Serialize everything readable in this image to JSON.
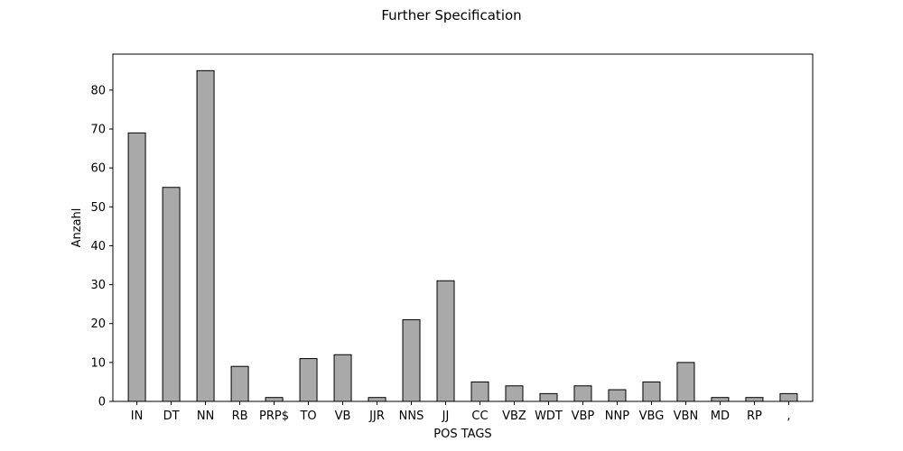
{
  "chart_data": {
    "type": "bar",
    "title": "Further Specification",
    "xlabel": "POS TAGS",
    "ylabel": "Anzahl",
    "categories": [
      "IN",
      "DT",
      "NN",
      "RB",
      "PRP$",
      "TO",
      "VB",
      "JJR",
      "NNS",
      "JJ",
      "CC",
      "VBZ",
      "WDT",
      "VBP",
      "NNP",
      "VBG",
      "VBN",
      "MD",
      "RP",
      ","
    ],
    "values": [
      69,
      55,
      85,
      9,
      1,
      11,
      12,
      1,
      21,
      31,
      5,
      4,
      2,
      4,
      3,
      5,
      10,
      1,
      1,
      2
    ],
    "ylim": [
      0,
      89.25
    ],
    "yticks": [
      0,
      10,
      20,
      30,
      40,
      50,
      60,
      70,
      80
    ],
    "bar_color": "#a9a9a9",
    "edge_color": "#000000",
    "grid": false,
    "legend": false
  }
}
